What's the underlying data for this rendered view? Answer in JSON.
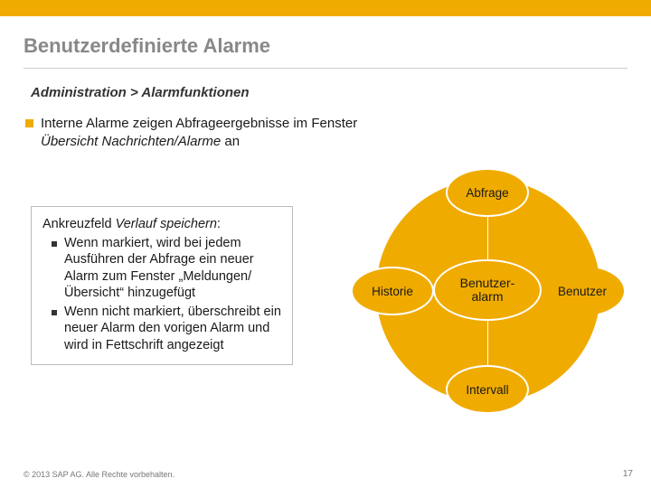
{
  "header": {
    "title": "Benutzerdefinierte Alarme"
  },
  "breadcrumb": "Administration > Alarmfunktionen",
  "bullet1": {
    "pre": "Interne Alarme zeigen Abfrageergebnisse im Fenster ",
    "ital": "Übersicht Nachrichten/Alarme",
    "post": " an"
  },
  "textbox": {
    "lead_pre": "Ankreuzfeld ",
    "lead_ital": "Verlauf speichern",
    "lead_post": ":",
    "sub1": "Wenn markiert, wird bei jedem Ausführen der Abfrage ein neuer Alarm zum Fenster „Meldungen/Übersicht“ hinzugefügt",
    "sub2": "Wenn nicht markiert, überschreibt ein neuer Alarm den vorigen Alarm und wird in Fettschrift angezeigt"
  },
  "diagram": {
    "center_l1": "Benutzer-",
    "center_l2": "alarm",
    "top": "Abfrage",
    "left": "Historie",
    "right": "Benutzer",
    "bottom": "Intervall",
    "colors": {
      "fill": "#f0ab00",
      "stroke": "#ffffff",
      "text": "#1a1a1a"
    }
  },
  "footer": {
    "copyright": "© 2013 SAP AG. Alle Rechte vorbehalten.",
    "page": "17"
  }
}
